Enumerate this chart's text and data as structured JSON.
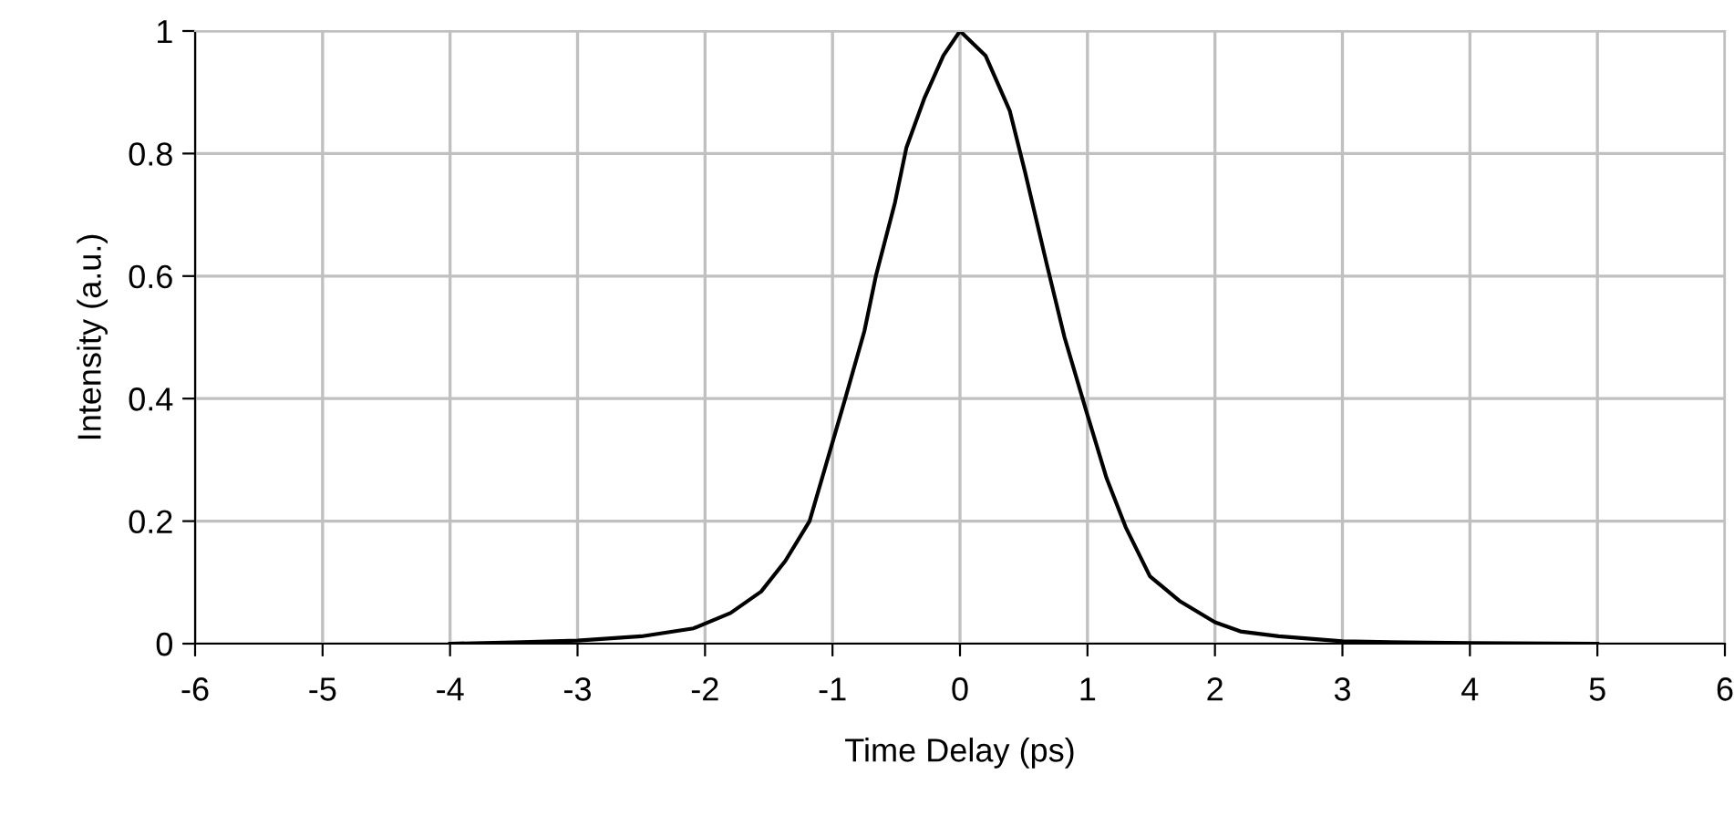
{
  "chart_data": {
    "type": "line",
    "xlabel": "Time Delay (ps)",
    "ylabel": "Intensity (a.u.)",
    "xlim": [
      -6,
      6
    ],
    "ylim": [
      0,
      1
    ],
    "xticks": [
      -6,
      -5,
      -4,
      -3,
      -2,
      -1,
      0,
      1,
      2,
      3,
      4,
      5,
      6
    ],
    "yticks": [
      0,
      0.2,
      0.4,
      0.6,
      0.8,
      1
    ],
    "grid": true,
    "series": [
      {
        "color": "#000000",
        "x": [
          -4.0,
          -3.5,
          -3.0,
          -2.5,
          -2.09,
          -1.8,
          -1.56,
          -1.37,
          -1.18,
          -1.04,
          -0.9,
          -0.75,
          -0.66,
          -0.51,
          -0.42,
          -0.28,
          -0.13,
          0,
          0.2,
          0.39,
          0.51,
          0.68,
          0.82,
          0.99,
          1.15,
          1.3,
          1.49,
          1.72,
          2.0,
          2.2,
          2.5,
          3.0,
          3.5,
          4.0,
          5.0
        ],
        "values": [
          0,
          0.002,
          0.005,
          0.012,
          0.025,
          0.05,
          0.085,
          0.135,
          0.2,
          0.3,
          0.4,
          0.51,
          0.6,
          0.72,
          0.81,
          0.89,
          0.96,
          1.0,
          0.96,
          0.87,
          0.77,
          0.62,
          0.5,
          0.38,
          0.27,
          0.19,
          0.11,
          0.07,
          0.035,
          0.02,
          0.012,
          0.004,
          0.002,
          0.001,
          0
        ]
      }
    ]
  }
}
